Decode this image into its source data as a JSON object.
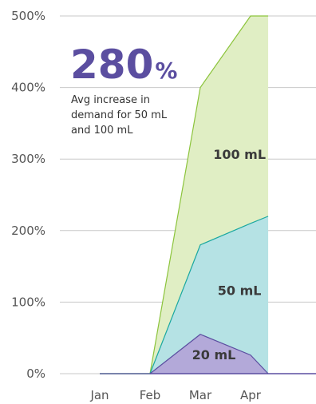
{
  "chart_data": {
    "type": "area",
    "stacked": true,
    "categories": [
      "Jan",
      "Feb",
      "Mar",
      "Apr"
    ],
    "x": [
      0,
      1,
      2,
      3,
      3.35
    ],
    "ylim": [
      0,
      500
    ],
    "yticks": [
      0,
      100,
      200,
      300,
      400,
      500
    ],
    "ytick_labels": [
      "0%",
      "100%",
      "200%",
      "300%",
      "400%",
      "500%"
    ],
    "grid": true,
    "series": [
      {
        "name": "20 mL",
        "values": [
          0,
          0,
          55,
          26,
          0
        ],
        "fill": "#b3a9d9",
        "stroke": "#5b4ea0"
      },
      {
        "name": "50 mL",
        "values": [
          0,
          0,
          180,
          210,
          220
        ],
        "fill": "#b5e2e4",
        "stroke": "#1aa8a0"
      },
      {
        "name": "100 mL",
        "values": [
          0,
          0,
          400,
          500,
          500
        ],
        "fill": "#e0eec4",
        "stroke": "#8cc43c"
      }
    ],
    "annotation": {
      "value": "280",
      "unit": "%",
      "caption": [
        "Avg increase in",
        "demand for 50 mL",
        "and 100 mL"
      ]
    }
  }
}
